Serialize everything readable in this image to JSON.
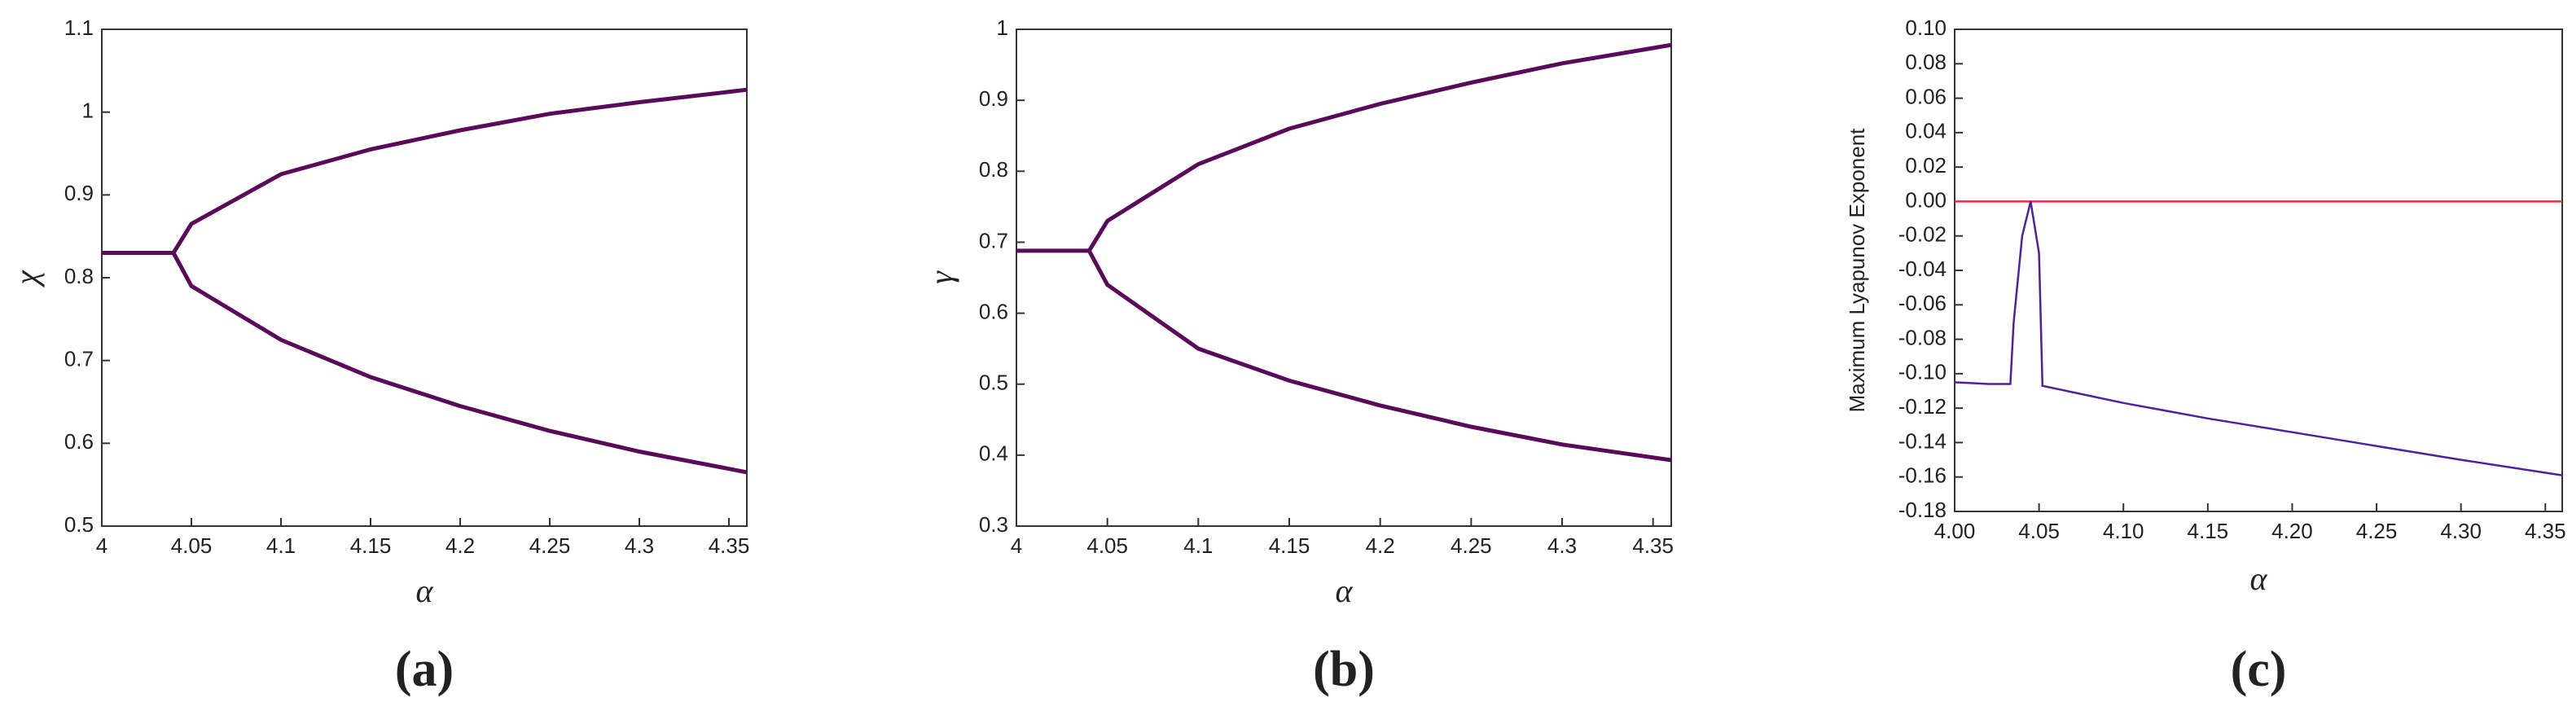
{
  "chart_data": [
    {
      "type": "line",
      "caption": "(a)",
      "xlabel": "α",
      "ylabel": "χ",
      "x": [
        4,
        4.02,
        4.04,
        4.05,
        4.1,
        4.15,
        4.2,
        4.25,
        4.3,
        4.36
      ],
      "series": [
        {
          "color": "#5a0a5a",
          "values": [
            0.83,
            0.83,
            0.83,
            0.865,
            0.925,
            0.955,
            0.978,
            0.998,
            1.012,
            1.027
          ]
        },
        {
          "color": "#5a0a5a",
          "values": [
            null,
            null,
            0.83,
            0.79,
            0.725,
            0.68,
            0.645,
            0.615,
            0.59,
            0.565
          ]
        }
      ],
      "xlim": [
        4,
        4.36
      ],
      "xticks": [
        4,
        4.05,
        4.1,
        4.15,
        4.2,
        4.25,
        4.3,
        4.35
      ],
      "ylim": [
        0.5,
        1.1
      ],
      "yticks": [
        0.5,
        0.6,
        0.7,
        0.8,
        0.9,
        1,
        1.1
      ]
    },
    {
      "type": "line",
      "caption": "(b)",
      "xlabel": "α",
      "ylabel": "γ",
      "x": [
        4,
        4.02,
        4.04,
        4.05,
        4.1,
        4.15,
        4.2,
        4.25,
        4.3,
        4.36
      ],
      "series": [
        {
          "color": "#5a0a5a",
          "values": [
            0.688,
            0.688,
            0.688,
            0.73,
            0.81,
            0.86,
            0.895,
            0.925,
            0.952,
            0.978
          ]
        },
        {
          "color": "#5a0a5a",
          "values": [
            null,
            null,
            0.688,
            0.64,
            0.55,
            0.505,
            0.47,
            0.44,
            0.415,
            0.393
          ]
        }
      ],
      "xlim": [
        4,
        4.36
      ],
      "xticks": [
        4,
        4.05,
        4.1,
        4.15,
        4.2,
        4.25,
        4.3,
        4.35
      ],
      "ylim": [
        0.3,
        1
      ],
      "yticks": [
        0.3,
        0.4,
        0.5,
        0.6,
        0.7,
        0.8,
        0.9,
        1
      ]
    },
    {
      "type": "line",
      "caption": "(c)",
      "xlabel": "α",
      "ylabel": "Maximum  Lyapunov Exponent",
      "x": [
        4,
        4.02,
        4.033,
        4.035,
        4.04,
        4.045,
        4.05,
        4.052,
        4.1,
        4.15,
        4.2,
        4.25,
        4.3,
        4.36
      ],
      "series": [
        {
          "color": "#5020a0",
          "values": [
            -0.105,
            -0.106,
            -0.106,
            -0.07,
            -0.02,
            0,
            -0.03,
            -0.107,
            -0.117,
            -0.126,
            -0.134,
            -0.142,
            -0.15,
            -0.159
          ]
        }
      ],
      "hline": 0,
      "hline_color": "#e0303c",
      "xlim": [
        4,
        4.36
      ],
      "xticks": [
        {
          "value": 4,
          "label": "4.00"
        },
        {
          "value": 4.05,
          "label": "4.05"
        },
        {
          "value": 4.1,
          "label": "4.10"
        },
        {
          "value": 4.15,
          "label": "4.15"
        },
        {
          "value": 4.2,
          "label": "4.20"
        },
        {
          "value": 4.25,
          "label": "4.25"
        },
        {
          "value": 4.3,
          "label": "4.30"
        },
        {
          "value": 4.35,
          "label": "4.35"
        }
      ],
      "ylim": [
        -0.18,
        0.1
      ],
      "yticks": [
        {
          "value": -0.18,
          "label": "-0.18"
        },
        {
          "value": -0.16,
          "label": "-0.16"
        },
        {
          "value": -0.14,
          "label": "-0.14"
        },
        {
          "value": -0.12,
          "label": "-0.12"
        },
        {
          "value": -0.1,
          "label": "-0.10"
        },
        {
          "value": -0.08,
          "label": "-0.08"
        },
        {
          "value": -0.06,
          "label": "-0.06"
        },
        {
          "value": -0.04,
          "label": "-0.04"
        },
        {
          "value": -0.02,
          "label": "-0.02"
        },
        {
          "value": 0,
          "label": "0.00"
        },
        {
          "value": 0.02,
          "label": "0.02"
        },
        {
          "value": 0.04,
          "label": "0.04"
        },
        {
          "value": 0.06,
          "label": "0.06"
        },
        {
          "value": 0.08,
          "label": "0.08"
        },
        {
          "value": 0.1,
          "label": "0.10"
        }
      ]
    }
  ]
}
